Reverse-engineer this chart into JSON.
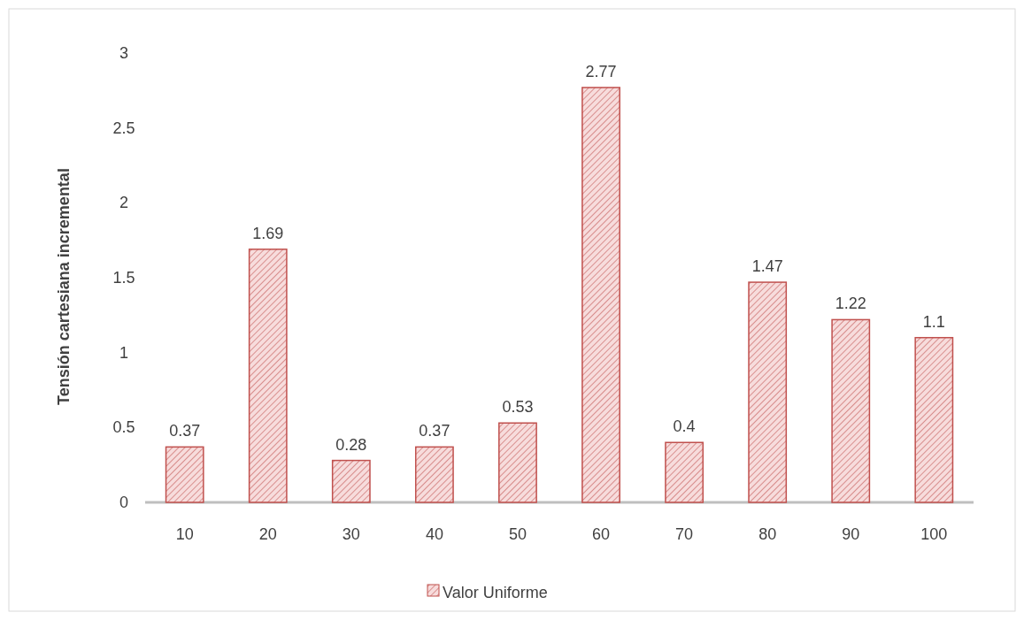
{
  "chart_data": {
    "type": "bar",
    "ylabel": "Tensión cartesiana incremental",
    "categories": [
      "10",
      "20",
      "30",
      "40",
      "50",
      "60",
      "70",
      "80",
      "90",
      "100"
    ],
    "series": [
      {
        "name": "Valor Uniforme",
        "color": "#c0504d",
        "values": [
          0.37,
          1.69,
          0.28,
          0.37,
          0.53,
          2.77,
          0.4,
          1.47,
          1.22,
          1.1
        ]
      }
    ],
    "ylim": [
      0,
      3
    ],
    "yticks": [
      0,
      0.5,
      1,
      1.5,
      2,
      2.5,
      3
    ],
    "grid": false,
    "legend": "bottom",
    "data_labels": true
  }
}
